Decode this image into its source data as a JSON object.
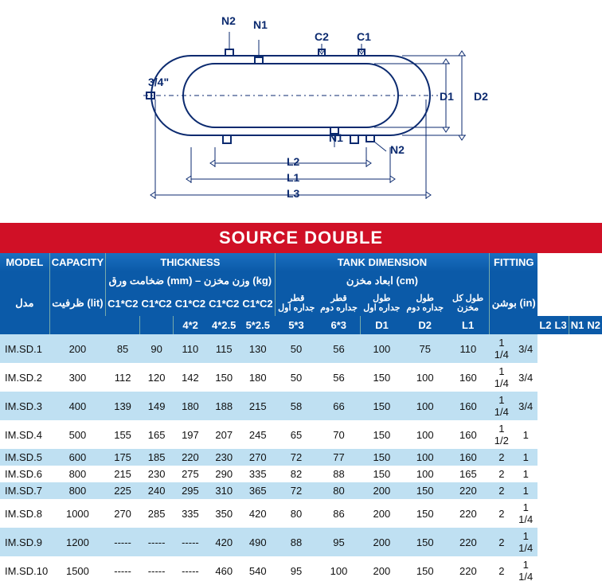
{
  "diagram": {
    "labels": {
      "N1": "N1",
      "N2": "N2",
      "C1": "C1",
      "C2": "C2",
      "D1": "D1",
      "D2": "D2",
      "L1": "L1",
      "L2": "L2",
      "L3": "L3",
      "port": "3/4\""
    },
    "stroke": "#0b2a6f"
  },
  "title": "SOURCE DOUBLE",
  "head": {
    "groups": [
      {
        "label": "MODEL"
      },
      {
        "label": "CAPACITY"
      },
      {
        "label": "THICKNESS",
        "span": 5
      },
      {
        "label": "TANK DIMENSION",
        "span": 5
      },
      {
        "label": "FITTING",
        "span": 2
      }
    ],
    "arabic": {
      "model": "مدل",
      "capacity": "ظرفیت (lit)",
      "thickness": "ضخامت ورق (mm) – وزن مخزن (kg)",
      "tankdim": "ابعاد مخزن (cm)",
      "fitting": "بوشن (in)"
    },
    "thicknessCols": [
      "C1*C2",
      "C1*C2",
      "C1*C2",
      "C1*C2",
      "C1*C2"
    ],
    "tankCols": [
      {
        "fa": "قطر جداره اول",
        "en": "D1"
      },
      {
        "fa": "قطر جداره دوم",
        "en": "D2"
      },
      {
        "fa": "طول جداره اول",
        "en": "L1"
      },
      {
        "fa": "طول جداره دوم",
        "en": "L2"
      },
      {
        "fa": "طول کل مخزن",
        "en": "L3"
      }
    ],
    "thicknessVals": [
      "4*2",
      "4*2.5",
      "5*2.5",
      "5*3",
      "6*3"
    ],
    "fittingCols": [
      "N1",
      "N2"
    ]
  },
  "rows": [
    {
      "model": "IM.SD.1",
      "cap": "200",
      "t": [
        "85",
        "90",
        "110",
        "115",
        "130"
      ],
      "d": [
        "50",
        "56",
        "100",
        "75",
        "110"
      ],
      "f": [
        "1 1/4",
        "3/4"
      ]
    },
    {
      "model": "IM.SD.2",
      "cap": "300",
      "t": [
        "112",
        "120",
        "142",
        "150",
        "180"
      ],
      "d": [
        "50",
        "56",
        "150",
        "100",
        "160"
      ],
      "f": [
        "1 1/4",
        "3/4"
      ]
    },
    {
      "model": "IM.SD.3",
      "cap": "400",
      "t": [
        "139",
        "149",
        "180",
        "188",
        "215"
      ],
      "d": [
        "58",
        "66",
        "150",
        "100",
        "160"
      ],
      "f": [
        "1 1/4",
        "3/4"
      ]
    },
    {
      "model": "IM.SD.4",
      "cap": "500",
      "t": [
        "155",
        "165",
        "197",
        "207",
        "245"
      ],
      "d": [
        "65",
        "70",
        "150",
        "100",
        "160"
      ],
      "f": [
        "1 1/2",
        "1"
      ]
    },
    {
      "model": "IM.SD.5",
      "cap": "600",
      "t": [
        "175",
        "185",
        "220",
        "230",
        "270"
      ],
      "d": [
        "72",
        "77",
        "150",
        "100",
        "160"
      ],
      "f": [
        "2",
        "1"
      ]
    },
    {
      "model": "IM.SD.6",
      "cap": "800",
      "t": [
        "215",
        "230",
        "275",
        "290",
        "335"
      ],
      "d": [
        "82",
        "88",
        "150",
        "100",
        "165"
      ],
      "f": [
        "2",
        "1"
      ]
    },
    {
      "model": "IM.SD.7",
      "cap": "800",
      "t": [
        "225",
        "240",
        "295",
        "310",
        "365"
      ],
      "d": [
        "72",
        "80",
        "200",
        "150",
        "220"
      ],
      "f": [
        "2",
        "1"
      ]
    },
    {
      "model": "IM.SD.8",
      "cap": "1000",
      "t": [
        "270",
        "285",
        "335",
        "350",
        "420"
      ],
      "d": [
        "80",
        "86",
        "200",
        "150",
        "220"
      ],
      "f": [
        "2",
        "1 1/4"
      ]
    },
    {
      "model": "IM.SD.9",
      "cap": "1200",
      "t": [
        "-----",
        "-----",
        "-----",
        "420",
        "490"
      ],
      "d": [
        "88",
        "95",
        "200",
        "150",
        "220"
      ],
      "f": [
        "2",
        "1 1/4"
      ]
    },
    {
      "model": "IM.SD.10",
      "cap": "1500",
      "t": [
        "-----",
        "-----",
        "-----",
        "460",
        "540"
      ],
      "d": [
        "95",
        "100",
        "200",
        "150",
        "220"
      ],
      "f": [
        "2",
        "1 1/4"
      ]
    }
  ],
  "colors": {
    "titleBg": "#d01026",
    "headerBg": "#0b5aa8",
    "alt0": "#bfe0f2",
    "alt1": "#ffffff"
  }
}
